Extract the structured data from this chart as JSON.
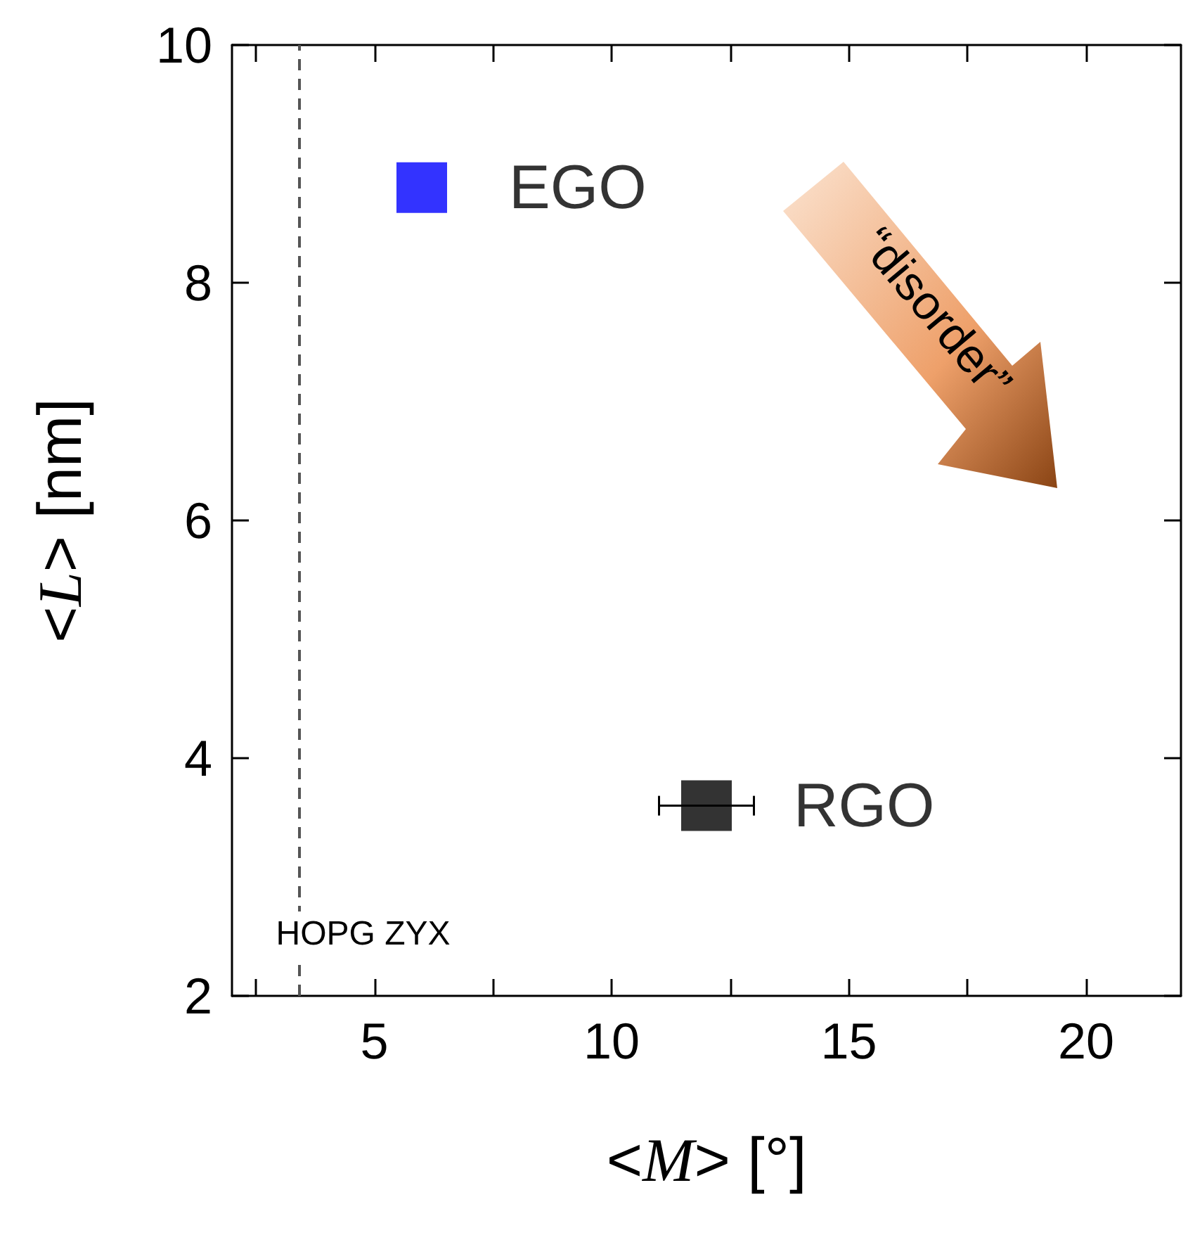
{
  "chart_data": {
    "type": "scatter",
    "xlabel": "<M> [°]",
    "ylabel": "<L> [nm]",
    "xlim": [
      2,
      22
    ],
    "xticks": [
      {
        "value": 2.5,
        "label": null
      },
      5,
      {
        "value": 7.5,
        "label": null
      },
      10,
      {
        "value": 12.5,
        "label": null
      },
      15,
      {
        "value": 17.5,
        "label": null
      },
      20
    ],
    "ylim": [
      2,
      10
    ],
    "yticks": [
      2,
      4,
      6,
      8,
      10
    ],
    "marker": "square",
    "grid": false,
    "legend": false,
    "series": [
      {
        "name": "EGO",
        "color": "#0000ff",
        "x": [
          6
        ],
        "values": [
          8.8
        ]
      },
      {
        "name": "RGO",
        "color": "#000000",
        "x": [
          12
        ],
        "values": [
          3.6
        ],
        "xerrors": [
          1
        ]
      }
    ],
    "ref_lines": [
      {
        "axis": "x",
        "value": 3.4,
        "label": "HOPG ZYX",
        "color": "#555555",
        "line_style": "dashed"
      }
    ],
    "annotations": [
      "“disorder”"
    ]
  }
}
